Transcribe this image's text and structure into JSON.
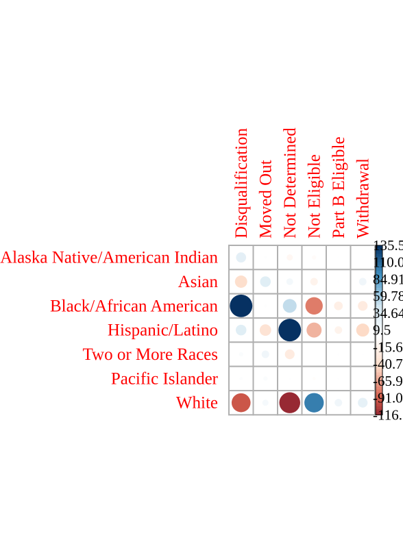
{
  "chart_data": {
    "type": "heatmap",
    "style": "circle-correlation-plot",
    "columns": [
      "Disqualification",
      "Moved Out",
      "Not Determined",
      "Not Eligible",
      "Part B Eligible",
      "Withdrawal"
    ],
    "rows": [
      "Alaska Native/American Indian",
      "Asian",
      "Black/African American",
      "Hispanic/Latino",
      "Two or More Races",
      "Pacific Islander",
      "White"
    ],
    "values": [
      [
        27,
        2,
        -10,
        -5,
        0.5,
        0.5
      ],
      [
        -40,
        30,
        12,
        -15,
        1,
        15
      ],
      [
        135,
        2,
        50,
        -80,
        -20,
        -25
      ],
      [
        30,
        -35,
        135,
        -60,
        -15,
        -45
      ],
      [
        5,
        15,
        -25,
        0,
        1,
        1
      ],
      [
        3,
        5,
        1,
        -3,
        1,
        0.5
      ],
      [
        -95,
        10,
        -116,
        100,
        15,
        25
      ]
    ],
    "colorbar": {
      "range": [
        -116.1,
        135.5
      ],
      "tick_labels": [
        "135.5",
        "110.0",
        "84.91",
        "59.78",
        "34.64",
        "9.5",
        "-15.6",
        "-40.7",
        "-65.9",
        "-91.0",
        "-116."
      ]
    },
    "grid": true,
    "legend": "colorbar-right",
    "colors": {
      "label_text": "#ff0000",
      "tick_text": "#000000",
      "grid_line": "#b0b0b0",
      "negative_strong": "#67001f",
      "negative_mid": "#d6604d",
      "negative_light": "#fddbc7",
      "neutral": "#ffffff",
      "positive_light": "#d1e5f0",
      "positive_mid": "#4393c3",
      "positive_strong": "#053061"
    }
  }
}
